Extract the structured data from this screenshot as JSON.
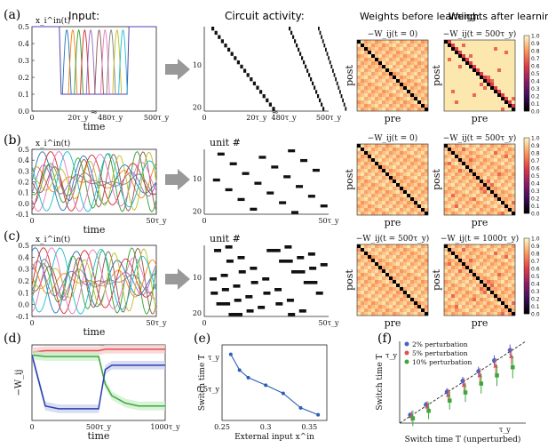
{
  "panels": {
    "a": {
      "label": "(a)",
      "input_title": "Input:",
      "activity_title": "Circuit activity:",
      "weights_before_title": "Weights before learning:",
      "weights_after_title": "Weights after learning:",
      "weights_before_sub": "−W_ij(t = 0)",
      "weights_after_sub": "−W_ij(t = 500τ_y)"
    },
    "b": {
      "label": "(b)",
      "weights_before_sub": "−W_ij(t = 0)",
      "weights_after_sub": "−W_ij(t = 500τ_y)"
    },
    "c": {
      "label": "(c)",
      "weights_before_sub": "−W_ij(t = 500τ_y)",
      "weights_after_sub": "−W_ij(t = 1000τ_y)"
    },
    "d": {
      "label": "(d)",
      "ylabel": "−W_ij",
      "xlabel": "time"
    },
    "e": {
      "label": "(e)",
      "ylabel": "Switch time T",
      "xlabel": "External input x^in"
    },
    "f": {
      "label": "(f)",
      "ylabel": "Switch time T",
      "xlabel": "Switch time T (unperturbed)"
    }
  },
  "common": {
    "time_label": "time",
    "unit_label": "unit #",
    "post_label": "post",
    "pre_label": "pre",
    "input_ylabel": "x_i^in(t)"
  },
  "ticks": {
    "a_y": [
      "0.5",
      "0.4",
      "0.3",
      "0.2",
      "0.1",
      "0.0"
    ],
    "a_x": [
      "0",
      "20τ_y",
      "480τ_y",
      "500τ_y"
    ],
    "bc_y": [
      "0.5",
      "0.4",
      "0.3",
      "0.2",
      "0.1",
      "0.0",
      "-0.1"
    ],
    "bc_x": [
      "0",
      "50τ_y"
    ],
    "units": [
      "10",
      "20"
    ],
    "a_act_x": [
      "0",
      "20τ_y",
      "480τ_y",
      "500τ_y"
    ],
    "bc_act_x": [
      "0",
      "50τ_y"
    ],
    "colorbar": [
      "1.0",
      "0.9",
      "0.8",
      "0.7",
      "0.6",
      "0.5",
      "0.4",
      "0.3",
      "0.2",
      "0.1",
      "0.0"
    ],
    "d_x": [
      "0",
      "500τ_y",
      "1000τ_y"
    ],
    "e_x": [
      "0.25",
      "0.3",
      "0.35"
    ],
    "e_y": [
      "τ_y",
      "0.5τ_y"
    ],
    "f_x": [
      "τ_y"
    ],
    "f_y": [
      "τ_y"
    ]
  },
  "legend_f": [
    {
      "label": "2% perturbation",
      "color": "#4a63c8"
    },
    {
      "label": "5% perturbation",
      "color": "#e05050"
    },
    {
      "label": "10% perturbation",
      "color": "#3ea63e"
    }
  ],
  "chart_data": [
    {
      "type": "line",
      "panel": "e",
      "xlabel": "External input x^in",
      "ylabel": "Switch time T",
      "x": [
        0.26,
        0.27,
        0.28,
        0.3,
        0.32,
        0.34,
        0.36
      ],
      "series": [
        {
          "values": [
            1.05,
            0.8,
            0.68,
            0.56,
            0.43,
            0.2,
            0.09
          ]
        }
      ],
      "xlim": [
        0.25,
        0.37
      ],
      "ylim": [
        0,
        1.2
      ]
    },
    {
      "type": "scatter",
      "panel": "f",
      "xlabel": "Switch time T (unperturbed)",
      "ylabel": "Switch time T",
      "series": [
        {
          "name": "2% perturbation",
          "x": [
            0.1,
            0.25,
            0.45,
            0.6,
            0.75,
            0.9,
            1.05
          ],
          "values": [
            0.12,
            0.27,
            0.46,
            0.62,
            0.76,
            0.92,
            1.07
          ]
        },
        {
          "name": "5% perturbation",
          "x": [
            0.1,
            0.25,
            0.45,
            0.6,
            0.75,
            0.9,
            1.05
          ],
          "values": [
            0.1,
            0.24,
            0.41,
            0.56,
            0.7,
            0.84,
            0.98
          ]
        },
        {
          "name": "10% perturbation",
          "x": [
            0.1,
            0.25,
            0.45,
            0.6,
            0.75,
            0.9,
            1.05
          ],
          "values": [
            0.07,
            0.18,
            0.33,
            0.45,
            0.58,
            0.7,
            0.82
          ]
        }
      ]
    },
    {
      "type": "line",
      "panel": "d",
      "xlabel": "time",
      "ylabel": "−W_ij",
      "x": [
        0,
        100,
        200,
        300,
        400,
        500,
        550,
        600,
        700,
        800,
        900,
        1000
      ],
      "series": [
        {
          "values": [
            0.97,
            0.98,
            0.98,
            0.98,
            0.98,
            0.98,
            0.99,
            0.99,
            0.99,
            0.99,
            0.99,
            0.99
          ]
        },
        {
          "values": [
            0.95,
            0.94,
            0.94,
            0.94,
            0.94,
            0.94,
            0.75,
            0.67,
            0.62,
            0.6,
            0.6,
            0.6
          ]
        },
        {
          "values": [
            0.95,
            0.6,
            0.58,
            0.58,
            0.58,
            0.58,
            0.85,
            0.88,
            0.88,
            0.88,
            0.88,
            0.88
          ]
        }
      ]
    }
  ]
}
